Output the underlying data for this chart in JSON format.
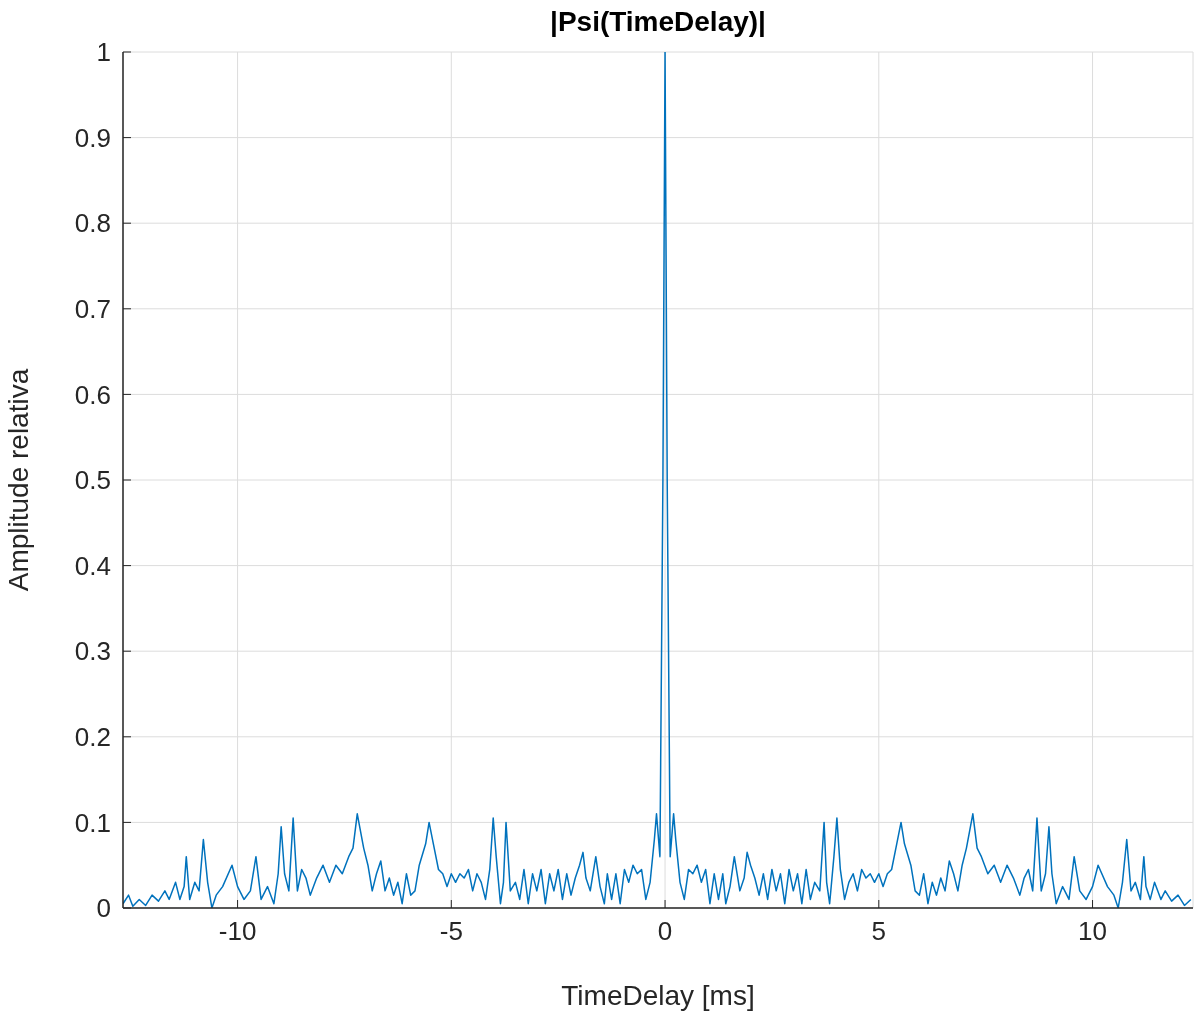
{
  "chart_data": {
    "type": "line",
    "title": "|Psi(TimeDelay)|",
    "xlabel": "TimeDelay [ms]",
    "ylabel": "Amplitude relativa",
    "xlim": [
      -12.68,
      12.35
    ],
    "xticks": [
      -10,
      -5,
      0,
      5,
      10
    ],
    "ylim": [
      0,
      1
    ],
    "yticks": [
      0,
      0.1,
      0.2,
      0.3,
      0.4,
      0.5,
      0.6,
      0.7,
      0.8,
      0.9,
      1
    ],
    "grid": true,
    "marker": "none",
    "line_style": "solid",
    "series": [
      {
        "color": "#0072bd",
        "x": [
          -12.68,
          -12.55,
          -12.45,
          -12.3,
          -12.15,
          -12.0,
          -11.85,
          -11.7,
          -11.6,
          -11.45,
          -11.35,
          -11.25,
          -11.2,
          -11.12,
          -11.0,
          -10.9,
          -10.8,
          -10.7,
          -10.6,
          -10.5,
          -10.35,
          -10.13,
          -10.0,
          -9.85,
          -9.7,
          -9.57,
          -9.45,
          -9.3,
          -9.15,
          -9.05,
          -8.98,
          -8.9,
          -8.8,
          -8.7,
          -8.6,
          -8.5,
          -8.4,
          -8.3,
          -8.15,
          -8.0,
          -7.85,
          -7.7,
          -7.55,
          -7.4,
          -7.3,
          -7.2,
          -7.05,
          -6.95,
          -6.85,
          -6.75,
          -6.65,
          -6.55,
          -6.45,
          -6.35,
          -6.25,
          -6.15,
          -6.05,
          -5.95,
          -5.85,
          -5.75,
          -5.6,
          -5.52,
          -5.42,
          -5.3,
          -5.2,
          -5.1,
          -5.0,
          -4.9,
          -4.8,
          -4.7,
          -4.6,
          -4.5,
          -4.4,
          -4.3,
          -4.2,
          -4.1,
          -4.02,
          -3.95,
          -3.85,
          -3.78,
          -3.72,
          -3.62,
          -3.5,
          -3.4,
          -3.3,
          -3.2,
          -3.1,
          -3.0,
          -2.9,
          -2.8,
          -2.7,
          -2.6,
          -2.5,
          -2.4,
          -2.3,
          -2.2,
          -2.1,
          -2.0,
          -1.92,
          -1.85,
          -1.75,
          -1.62,
          -1.52,
          -1.42,
          -1.35,
          -1.25,
          -1.15,
          -1.05,
          -0.95,
          -0.85,
          -0.75,
          -0.65,
          -0.55,
          -0.45,
          -0.35,
          -0.25,
          -0.2,
          -0.12,
          -0.05,
          0,
          0.05,
          0.12,
          0.2,
          0.25,
          0.35,
          0.45,
          0.55,
          0.65,
          0.75,
          0.85,
          0.95,
          1.05,
          1.15,
          1.25,
          1.35,
          1.42,
          1.52,
          1.62,
          1.75,
          1.85,
          1.92,
          2.0,
          2.1,
          2.2,
          2.3,
          2.4,
          2.5,
          2.6,
          2.7,
          2.8,
          2.9,
          3.0,
          3.1,
          3.2,
          3.3,
          3.4,
          3.5,
          3.62,
          3.72,
          3.78,
          3.85,
          3.95,
          4.02,
          4.1,
          4.2,
          4.3,
          4.4,
          4.5,
          4.6,
          4.7,
          4.8,
          4.9,
          5.0,
          5.1,
          5.2,
          5.3,
          5.42,
          5.52,
          5.6,
          5.75,
          5.85,
          5.95,
          6.05,
          6.15,
          6.25,
          6.35,
          6.45,
          6.55,
          6.65,
          6.75,
          6.85,
          6.95,
          7.05,
          7.2,
          7.3,
          7.4,
          7.55,
          7.7,
          7.85,
          8.0,
          8.15,
          8.3,
          8.4,
          8.5,
          8.6,
          8.7,
          8.8,
          8.9,
          8.98,
          9.05,
          9.15,
          9.3,
          9.45,
          9.57,
          9.7,
          9.85,
          10.0,
          10.13,
          10.35,
          10.5,
          10.6,
          10.7,
          10.8,
          10.9,
          11.0,
          11.12,
          11.2,
          11.25,
          11.35,
          11.45,
          11.6,
          11.7,
          11.85,
          12.0,
          12.15,
          12.3
        ],
        "values": [
          0.005,
          0.015,
          0.002,
          0.01,
          0.003,
          0.015,
          0.008,
          0.02,
          0.01,
          0.03,
          0.01,
          0.025,
          0.06,
          0.01,
          0.03,
          0.02,
          0.08,
          0.03,
          0.0,
          0.015,
          0.025,
          0.05,
          0.025,
          0.01,
          0.02,
          0.06,
          0.01,
          0.025,
          0.005,
          0.04,
          0.095,
          0.04,
          0.02,
          0.105,
          0.02,
          0.045,
          0.035,
          0.015,
          0.035,
          0.05,
          0.03,
          0.05,
          0.04,
          0.06,
          0.07,
          0.11,
          0.07,
          0.05,
          0.02,
          0.04,
          0.055,
          0.02,
          0.035,
          0.015,
          0.03,
          0.005,
          0.04,
          0.015,
          0.02,
          0.05,
          0.075,
          0.1,
          0.075,
          0.045,
          0.04,
          0.025,
          0.04,
          0.03,
          0.04,
          0.035,
          0.045,
          0.02,
          0.04,
          0.03,
          0.01,
          0.045,
          0.105,
          0.06,
          0.005,
          0.03,
          0.1,
          0.02,
          0.03,
          0.01,
          0.045,
          0.005,
          0.04,
          0.02,
          0.045,
          0.005,
          0.04,
          0.02,
          0.045,
          0.01,
          0.04,
          0.015,
          0.035,
          0.05,
          0.065,
          0.035,
          0.02,
          0.06,
          0.025,
          0.005,
          0.04,
          0.01,
          0.04,
          0.005,
          0.045,
          0.03,
          0.05,
          0.04,
          0.045,
          0.01,
          0.03,
          0.08,
          0.11,
          0.06,
          0.5,
          1,
          0.5,
          0.06,
          0.11,
          0.08,
          0.03,
          0.01,
          0.045,
          0.04,
          0.05,
          0.03,
          0.045,
          0.005,
          0.04,
          0.01,
          0.04,
          0.005,
          0.025,
          0.06,
          0.02,
          0.035,
          0.065,
          0.05,
          0.035,
          0.015,
          0.04,
          0.01,
          0.045,
          0.02,
          0.04,
          0.005,
          0.045,
          0.02,
          0.04,
          0.005,
          0.045,
          0.01,
          0.03,
          0.02,
          0.1,
          0.03,
          0.005,
          0.06,
          0.105,
          0.045,
          0.01,
          0.03,
          0.04,
          0.02,
          0.045,
          0.035,
          0.04,
          0.03,
          0.04,
          0.025,
          0.04,
          0.045,
          0.075,
          0.1,
          0.075,
          0.05,
          0.02,
          0.015,
          0.04,
          0.005,
          0.03,
          0.015,
          0.035,
          0.02,
          0.055,
          0.04,
          0.02,
          0.05,
          0.07,
          0.11,
          0.07,
          0.06,
          0.04,
          0.05,
          0.03,
          0.05,
          0.035,
          0.015,
          0.035,
          0.045,
          0.02,
          0.105,
          0.02,
          0.04,
          0.095,
          0.04,
          0.005,
          0.025,
          0.01,
          0.06,
          0.02,
          0.01,
          0.025,
          0.05,
          0.025,
          0.015,
          0.0,
          0.03,
          0.08,
          0.02,
          0.03,
          0.01,
          0.06,
          0.025,
          0.01,
          0.03,
          0.01,
          0.02,
          0.008,
          0.015,
          0.003,
          0.01
        ]
      }
    ]
  }
}
